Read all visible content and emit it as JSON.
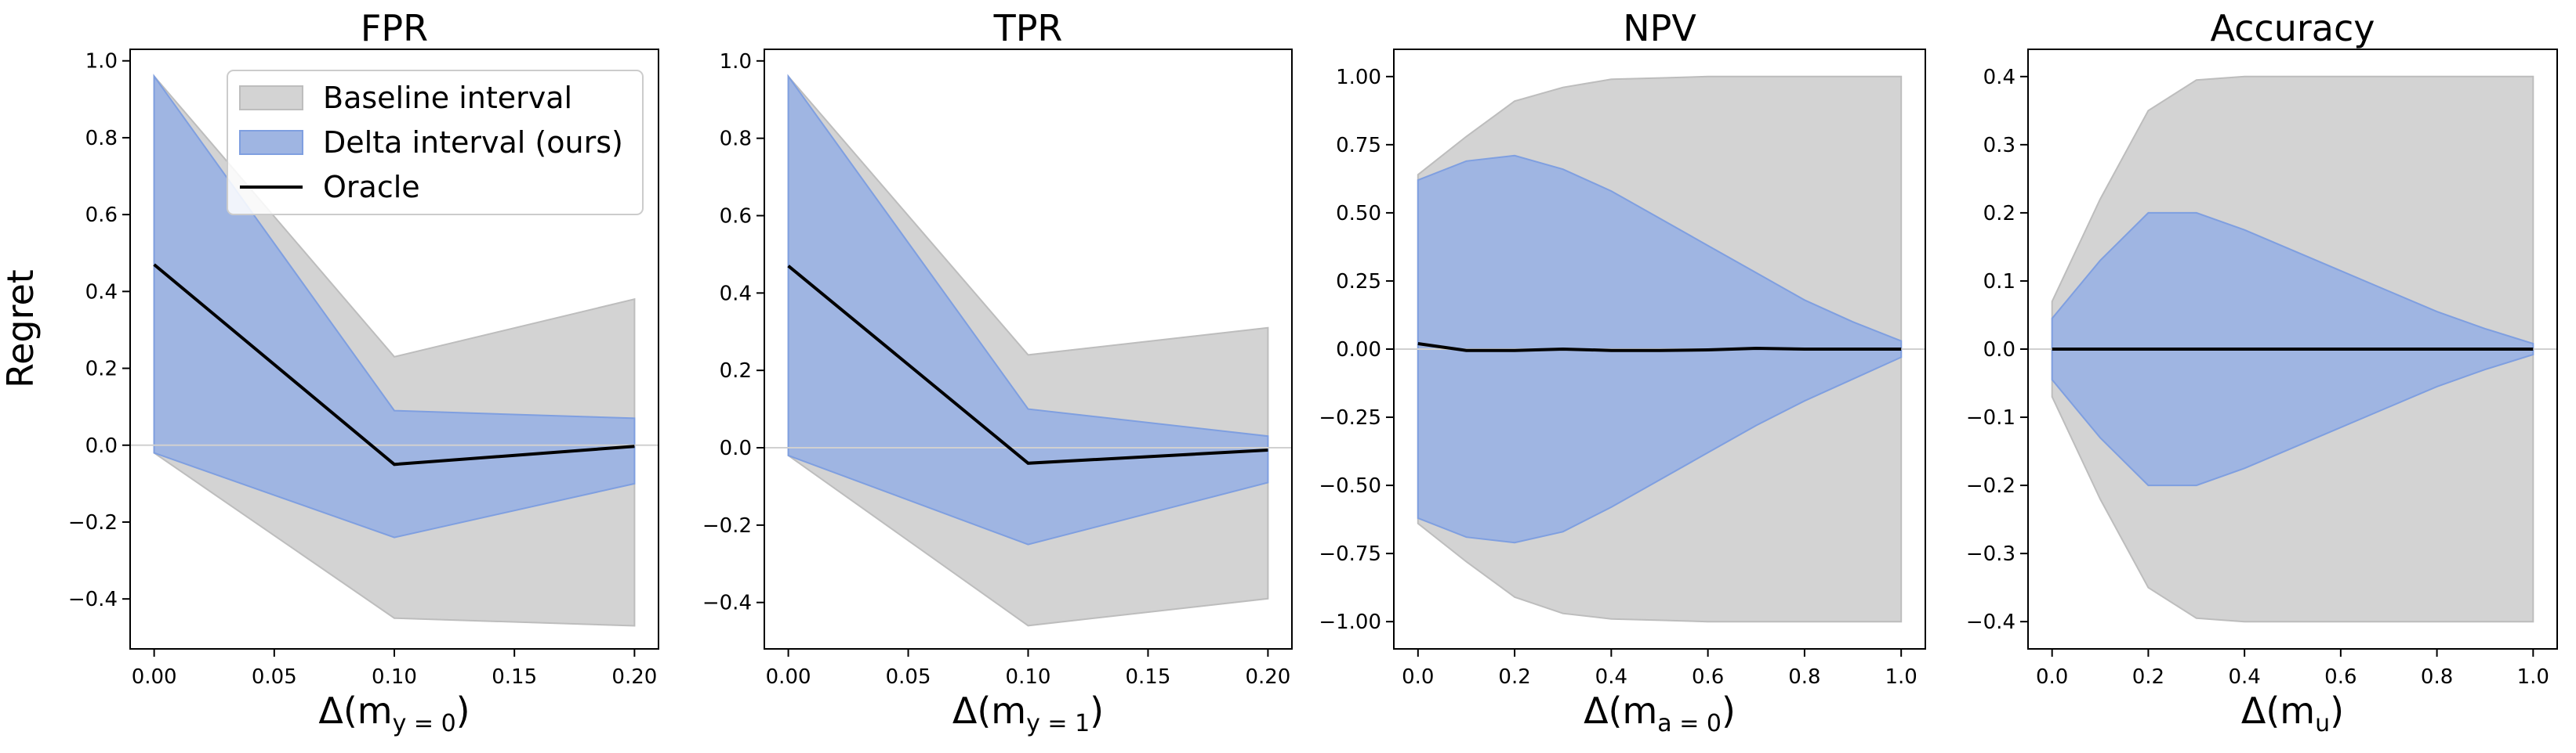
{
  "figure": {
    "ylabel": "Regret"
  },
  "legend": {
    "entries": [
      {
        "label": "Baseline interval",
        "kind": "patch",
        "color": "#d3d3d3",
        "edge": "#bdbdbd"
      },
      {
        "label": "Delta interval (ours)",
        "kind": "patch",
        "color": "#9fb5e2",
        "edge": "#7f9fe0"
      },
      {
        "label": "Oracle",
        "kind": "line",
        "color": "#000000"
      }
    ],
    "placement": "top-right of first panel"
  },
  "chart_data": [
    {
      "type": "area",
      "title": "FPR",
      "xlabel_main": "Δ(m",
      "xlabel_sub": "y = 0",
      "xlabel_tail": ")",
      "ylabel": "Regret",
      "xlim": [
        -0.01,
        0.21
      ],
      "ylim": [
        -0.53,
        1.03
      ],
      "xticks": [
        0.0,
        0.05,
        0.1,
        0.15,
        0.2
      ],
      "xtick_labels": [
        "0.00",
        "0.05",
        "0.10",
        "0.15",
        "0.20"
      ],
      "yticks": [
        -0.4,
        -0.2,
        0.0,
        0.2,
        0.4,
        0.6,
        0.8,
        1.0
      ],
      "ytick_labels": [
        "−0.4",
        "−0.2",
        "0.0",
        "0.2",
        "0.4",
        "0.6",
        "0.8",
        "1.0"
      ],
      "x": [
        0.0,
        0.1,
        0.2
      ],
      "baseline_upper": [
        0.96,
        0.23,
        0.38
      ],
      "baseline_lower": [
        -0.02,
        -0.45,
        -0.47
      ],
      "delta_upper": [
        0.96,
        0.09,
        0.07
      ],
      "delta_lower": [
        -0.02,
        -0.24,
        -0.1
      ],
      "oracle": [
        0.47,
        -0.05,
        -0.003
      ],
      "grid": false
    },
    {
      "type": "area",
      "title": "TPR",
      "xlabel_main": "Δ(m",
      "xlabel_sub": "y = 1",
      "xlabel_tail": ")",
      "ylabel": "",
      "xlim": [
        -0.01,
        0.21
      ],
      "ylim": [
        -0.52,
        1.03
      ],
      "xticks": [
        0.0,
        0.05,
        0.1,
        0.15,
        0.2
      ],
      "xtick_labels": [
        "0.00",
        "0.05",
        "0.10",
        "0.15",
        "0.20"
      ],
      "yticks": [
        -0.4,
        -0.2,
        0.0,
        0.2,
        0.4,
        0.6,
        0.8,
        1.0
      ],
      "ytick_labels": [
        "−0.4",
        "−0.2",
        "0.0",
        "0.2",
        "0.4",
        "0.6",
        "0.8",
        "1.0"
      ],
      "x": [
        0.0,
        0.1,
        0.2
      ],
      "baseline_upper": [
        0.96,
        0.24,
        0.31
      ],
      "baseline_lower": [
        -0.02,
        -0.46,
        -0.39
      ],
      "delta_upper": [
        0.96,
        0.1,
        0.03
      ],
      "delta_lower": [
        -0.02,
        -0.25,
        -0.09
      ],
      "oracle": [
        0.47,
        -0.04,
        -0.006
      ],
      "grid": false
    },
    {
      "type": "area",
      "title": "NPV",
      "xlabel_main": "Δ(m",
      "xlabel_sub": "a = 0",
      "xlabel_tail": ")",
      "ylabel": "",
      "xlim": [
        -0.05,
        1.05
      ],
      "ylim": [
        -1.1,
        1.1
      ],
      "xticks": [
        0.0,
        0.2,
        0.4,
        0.6,
        0.8,
        1.0
      ],
      "xtick_labels": [
        "0.0",
        "0.2",
        "0.4",
        "0.6",
        "0.8",
        "1.0"
      ],
      "yticks": [
        -1.0,
        -0.75,
        -0.5,
        -0.25,
        0.0,
        0.25,
        0.5,
        0.75,
        1.0
      ],
      "ytick_labels": [
        "−1.00",
        "−0.75",
        "−0.50",
        "−0.25",
        "0.00",
        "0.25",
        "0.50",
        "0.75",
        "1.00"
      ],
      "x": [
        0.0,
        0.1,
        0.2,
        0.3,
        0.4,
        0.5,
        0.6,
        0.7,
        0.8,
        0.9,
        1.0
      ],
      "baseline_upper": [
        0.64,
        0.78,
        0.91,
        0.96,
        0.99,
        0.995,
        1.0,
        1.0,
        1.0,
        1.0,
        1.0
      ],
      "baseline_lower": [
        -0.64,
        -0.78,
        -0.91,
        -0.97,
        -0.99,
        -0.995,
        -1.0,
        -1.0,
        -1.0,
        -1.0,
        -1.0
      ],
      "delta_upper": [
        0.62,
        0.69,
        0.71,
        0.66,
        0.58,
        0.48,
        0.38,
        0.28,
        0.18,
        0.1,
        0.03
      ],
      "delta_lower": [
        -0.62,
        -0.69,
        -0.71,
        -0.67,
        -0.58,
        -0.48,
        -0.38,
        -0.28,
        -0.19,
        -0.11,
        -0.03
      ],
      "oracle": [
        0.02,
        -0.005,
        -0.005,
        0.0,
        -0.005,
        -0.005,
        -0.003,
        0.003,
        0.0,
        0.0,
        0.0
      ],
      "grid": false
    },
    {
      "type": "area",
      "title": "Accuracy",
      "xlabel_main": "Δ(m",
      "xlabel_sub": "u",
      "xlabel_tail": ")",
      "ylabel": "",
      "xlim": [
        -0.05,
        1.05
      ],
      "ylim": [
        -0.44,
        0.44
      ],
      "xticks": [
        0.0,
        0.2,
        0.4,
        0.6,
        0.8,
        1.0
      ],
      "xtick_labels": [
        "0.0",
        "0.2",
        "0.4",
        "0.6",
        "0.8",
        "1.0"
      ],
      "yticks": [
        -0.4,
        -0.3,
        -0.2,
        -0.1,
        0.0,
        0.1,
        0.2,
        0.3,
        0.4
      ],
      "ytick_labels": [
        "−0.4",
        "−0.3",
        "−0.2",
        "−0.1",
        "0.0",
        "0.1",
        "0.2",
        "0.3",
        "0.4"
      ],
      "x": [
        0.0,
        0.1,
        0.2,
        0.3,
        0.4,
        0.5,
        0.6,
        0.7,
        0.8,
        0.9,
        1.0
      ],
      "baseline_upper": [
        0.07,
        0.22,
        0.35,
        0.395,
        0.4,
        0.4,
        0.4,
        0.4,
        0.4,
        0.4,
        0.4
      ],
      "baseline_lower": [
        -0.07,
        -0.22,
        -0.35,
        -0.395,
        -0.4,
        -0.4,
        -0.4,
        -0.4,
        -0.4,
        -0.4,
        -0.4
      ],
      "delta_upper": [
        0.045,
        0.13,
        0.2,
        0.2,
        0.175,
        0.145,
        0.115,
        0.085,
        0.055,
        0.03,
        0.008
      ],
      "delta_lower": [
        -0.045,
        -0.13,
        -0.2,
        -0.2,
        -0.175,
        -0.145,
        -0.115,
        -0.085,
        -0.055,
        -0.03,
        -0.008
      ],
      "oracle": [
        0.0,
        0.0,
        0.0,
        0.0,
        0.0,
        0.0,
        0.0,
        0.0,
        0.0,
        0.0,
        0.0
      ],
      "grid": false
    }
  ]
}
